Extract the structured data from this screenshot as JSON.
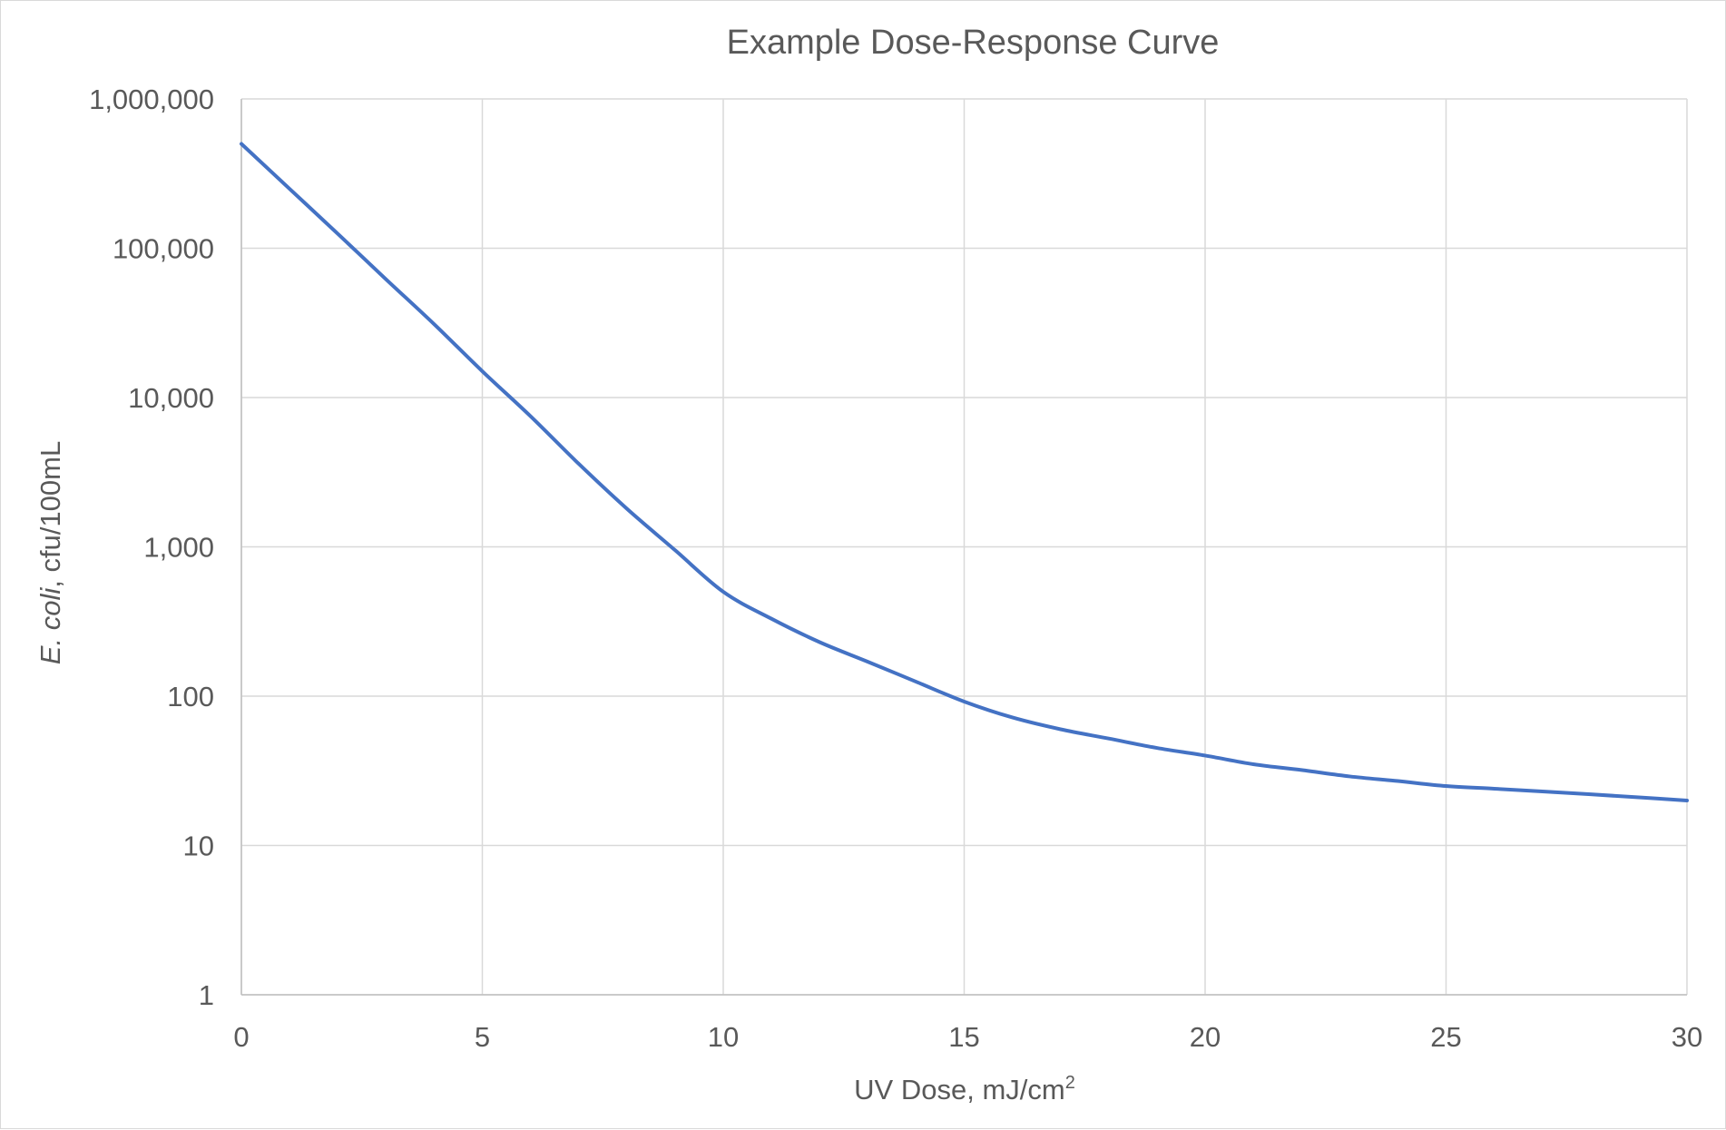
{
  "chart_data": {
    "type": "line",
    "title": "Example Dose-Response Curve",
    "xlabel": {
      "text": "UV Dose, mJ/cm",
      "superscript": "2"
    },
    "ylabel": {
      "italic_part": "E. coli",
      "rest": ", cfu/100mL"
    },
    "xlim": [
      0,
      30
    ],
    "ylim": [
      1,
      1000000
    ],
    "yscale": "log",
    "x_ticks": [
      0,
      5,
      10,
      15,
      20,
      25,
      30
    ],
    "x_tick_labels": [
      "0",
      "5",
      "10",
      "15",
      "20",
      "25",
      "30"
    ],
    "y_ticks": [
      1,
      10,
      100,
      1000,
      10000,
      100000,
      1000000
    ],
    "y_tick_labels": [
      "1",
      "10",
      "100",
      "1,000",
      "10,000",
      "100,000",
      "1,000,000"
    ],
    "grid": true,
    "legend": "none",
    "series": [
      {
        "color": "#4472C4",
        "x": [
          0,
          1,
          2,
          3,
          4,
          5,
          6,
          7,
          8,
          9,
          10,
          11,
          12,
          13,
          14,
          15,
          16,
          17,
          18,
          19,
          20,
          21,
          22,
          23,
          24,
          25,
          26,
          27,
          28,
          29,
          30
        ],
        "y": [
          500000,
          250000,
          125000,
          62000,
          31000,
          15000,
          7500,
          3600,
          1800,
          950,
          500,
          330,
          230,
          170,
          125,
          92,
          72,
          60,
          52,
          45,
          40,
          35,
          32,
          29,
          27,
          25,
          24,
          23,
          22,
          21,
          20
        ]
      }
    ]
  }
}
